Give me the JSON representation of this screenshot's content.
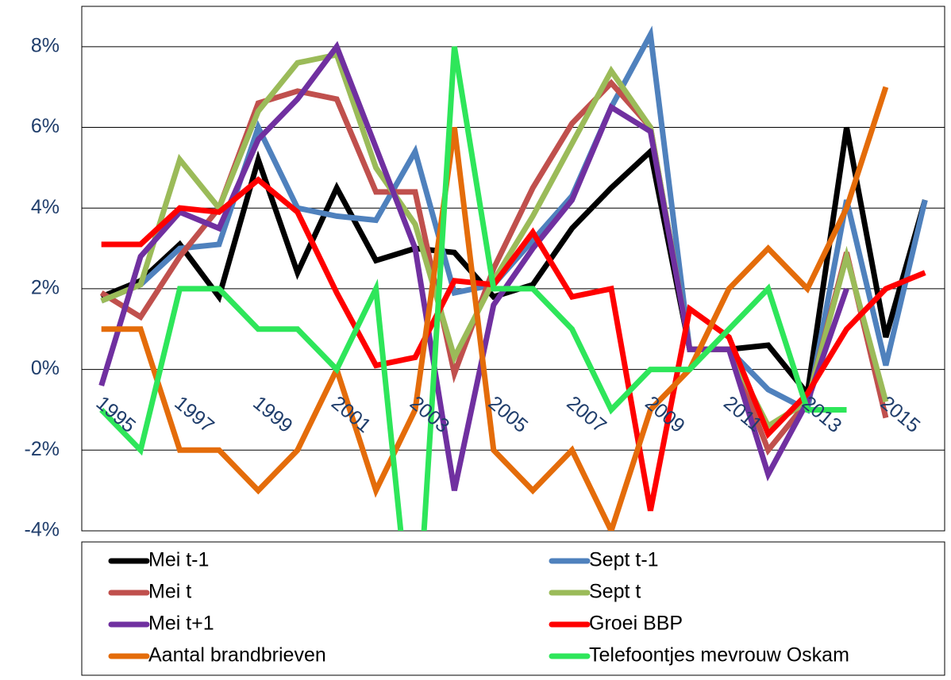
{
  "chart_data": {
    "type": "line",
    "categories": [
      "1995",
      null,
      "1997",
      null,
      "1999",
      null,
      "2001",
      null,
      "2003",
      null,
      "2005",
      null,
      "2007",
      null,
      "2009",
      null,
      "2011",
      null,
      "2013",
      null,
      "2015",
      null
    ],
    "ylim": [
      -4,
      9
    ],
    "yticks": [
      {
        "value": -4,
        "label": "-4%"
      },
      {
        "value": -2,
        "label": "-2%"
      },
      {
        "value": 0,
        "label": "0%"
      },
      {
        "value": 2,
        "label": "2%"
      },
      {
        "value": 4,
        "label": "4%"
      },
      {
        "value": 6,
        "label": "6%"
      },
      {
        "value": 8,
        "label": "8%"
      }
    ],
    "grid": true,
    "legend": "bottom",
    "series": [
      {
        "name": "Mei t-1",
        "color": "#000000",
        "values": [
          1.8,
          2.2,
          3.1,
          1.8,
          5.2,
          2.4,
          4.5,
          2.7,
          3.0,
          2.9,
          1.8,
          2.1,
          3.5,
          4.5,
          5.4,
          0.5,
          0.5,
          0.6,
          -0.6,
          6.0,
          0.8,
          4.2
        ]
      },
      {
        "name": "Sept t-1",
        "color": "#4f81bd",
        "values": [
          1.7,
          2.1,
          3.0,
          3.1,
          6.0,
          4.0,
          3.8,
          3.7,
          5.4,
          1.9,
          2.1,
          3.2,
          4.3,
          6.5,
          8.3,
          0.5,
          0.5,
          -0.5,
          -1.0,
          4.2,
          0.1,
          4.2
        ]
      },
      {
        "name": "Mei t",
        "color": "#c0504d",
        "values": [
          1.9,
          1.3,
          2.8,
          4.0,
          6.6,
          6.9,
          6.7,
          4.4,
          4.4,
          -0.1,
          2.5,
          4.5,
          6.1,
          7.1,
          6.0,
          0.5,
          0.5,
          -2.0,
          -0.8,
          2.9,
          -1.2,
          null
        ]
      },
      {
        "name": "Sept t",
        "color": "#9bbb59",
        "values": [
          1.7,
          2.1,
          5.2,
          4.0,
          6.4,
          7.6,
          7.8,
          5.0,
          3.6,
          0.3,
          2.2,
          3.8,
          5.6,
          7.4,
          6.0,
          0.5,
          0.5,
          -1.4,
          -0.8,
          2.8,
          -0.8,
          null
        ]
      },
      {
        "name": "Mei t+1",
        "color": "#7030a0",
        "values": [
          -0.4,
          2.8,
          3.9,
          3.5,
          5.7,
          6.7,
          8.0,
          5.5,
          3.0,
          -3.0,
          1.6,
          3.0,
          4.2,
          6.5,
          5.9,
          0.5,
          0.5,
          -2.6,
          -0.8,
          2.0,
          null,
          null
        ]
      },
      {
        "name": "Groei BBP",
        "color": "#ff0000",
        "values": [
          3.1,
          3.1,
          4.0,
          3.9,
          4.7,
          3.9,
          1.9,
          0.1,
          0.3,
          2.2,
          2.1,
          3.4,
          1.8,
          2.0,
          -3.5,
          1.5,
          0.8,
          -1.6,
          -0.6,
          1.0,
          2.0,
          2.4
        ]
      },
      {
        "name": "Aantal brandbrieven",
        "color": "#e46c0a",
        "values": [
          1,
          1,
          -2,
          -2,
          -3,
          -2,
          0,
          -3,
          -1,
          6,
          -2,
          -3,
          -2,
          -4,
          -1,
          0,
          2,
          3,
          2,
          4,
          7,
          null
        ]
      },
      {
        "name": "Telefoontjes mevrouw Oskam",
        "color": "#2ee65a",
        "values": [
          -1,
          -2,
          2,
          2,
          1,
          1,
          0,
          2,
          -7.5,
          8,
          2,
          2,
          1,
          -1,
          0,
          0,
          1,
          2,
          -1,
          -1,
          null,
          null
        ]
      }
    ]
  }
}
